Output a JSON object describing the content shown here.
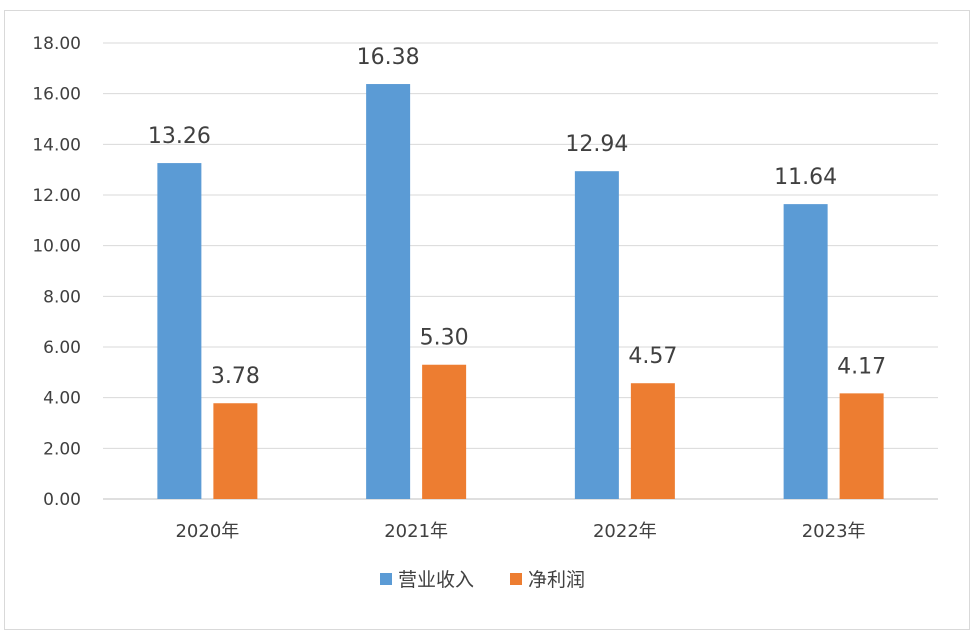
{
  "chart_data": {
    "type": "bar",
    "categories": [
      "2020年",
      "2021年",
      "2022年",
      "2023年"
    ],
    "series": [
      {
        "name": "营业收入",
        "values": [
          13.26,
          16.38,
          12.94,
          11.64
        ],
        "color": "#5B9BD5"
      },
      {
        "name": "净利润",
        "values": [
          3.78,
          5.3,
          4.57,
          4.17
        ],
        "color": "#ED7D31"
      }
    ],
    "data_labels": [
      [
        "13.26",
        "16.38",
        "12.94",
        "11.64"
      ],
      [
        "3.78",
        "5.30",
        "4.57",
        "4.17"
      ]
    ],
    "y_ticks": [
      "0.00",
      "2.00",
      "4.00",
      "6.00",
      "8.00",
      "10.00",
      "12.00",
      "14.00",
      "16.00",
      "18.00"
    ],
    "ylim": [
      0,
      18
    ],
    "grid": true,
    "legend_position": "bottom",
    "title": "",
    "xlabel": "",
    "ylabel": ""
  }
}
